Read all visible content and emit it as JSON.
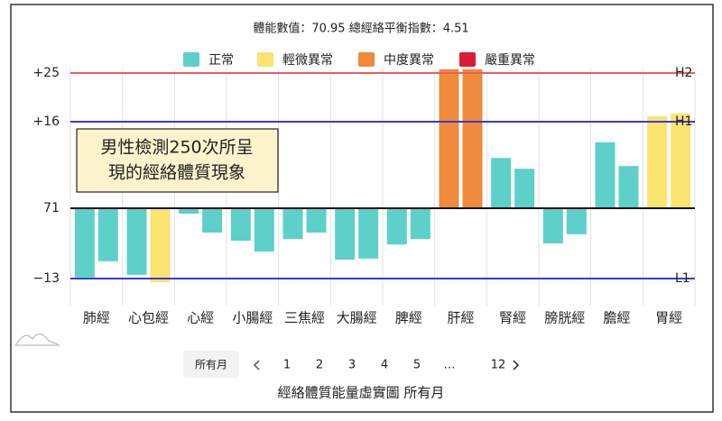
{
  "chart_data": {
    "type": "paired-bar",
    "subtitle": "體能數值：70.95 總經絡平衡指數：4.51",
    "legend": [
      {
        "name": "正常",
        "color": "#5dd0ca"
      },
      {
        "name": "輕微異常",
        "color": "#fae36f"
      },
      {
        "name": "中度異常",
        "color": "#f08a3c"
      },
      {
        "name": "嚴重異常",
        "color": "#d81b36"
      }
    ],
    "categories": [
      "肺經",
      "心包經",
      "心經",
      "小腸經",
      "三焦經",
      "大腸經",
      "脾經",
      "肝經",
      "腎經",
      "膀胱經",
      "膽經",
      "胃經"
    ],
    "values": [
      [
        -12.8,
        -9.8
      ],
      [
        -12.3,
        -13.7
      ],
      [
        -1,
        -4.5
      ],
      [
        -6,
        -8
      ],
      [
        -5.7,
        -4.5
      ],
      [
        -9.5,
        -9.3
      ],
      [
        -6.7,
        -5.7
      ],
      [
        25.7,
        25.7
      ],
      [
        9.3,
        7.3
      ],
      [
        -6.5,
        -4.8
      ],
      [
        12.2,
        7.8
      ],
      [
        17,
        17.5
      ]
    ],
    "status": [
      [
        0,
        0
      ],
      [
        0,
        1
      ],
      [
        0,
        0
      ],
      [
        0,
        0
      ],
      [
        0,
        0
      ],
      [
        0,
        0
      ],
      [
        0,
        0
      ],
      [
        2,
        2
      ],
      [
        0,
        0
      ],
      [
        0,
        0
      ],
      [
        0,
        0
      ],
      [
        1,
        1
      ]
    ],
    "ylim": [
      -18,
      26
    ],
    "yticks": [
      {
        "value": 25,
        "label": "+25"
      },
      {
        "value": 16,
        "label": "+16"
      },
      {
        "value": 0,
        "label": "71"
      },
      {
        "value": -13,
        "label": "−13"
      }
    ],
    "reference_lines": [
      {
        "value": 25,
        "label": "H2",
        "color": "#e66060"
      },
      {
        "value": 16,
        "label": "H1",
        "color": "#3a3ad6"
      },
      {
        "value": 0,
        "color": "#111111"
      },
      {
        "value": -13,
        "label": "L1",
        "color": "#3a3ad6"
      }
    ],
    "annotation": [
      "男性檢測250次所呈",
      "現的經絡體質現象"
    ],
    "pagination": {
      "all": "所有月",
      "pages": [
        "1",
        "2",
        "3",
        "4",
        "5",
        "…",
        "12"
      ]
    },
    "caption": "經絡體質能量虛實圖 所有月"
  }
}
